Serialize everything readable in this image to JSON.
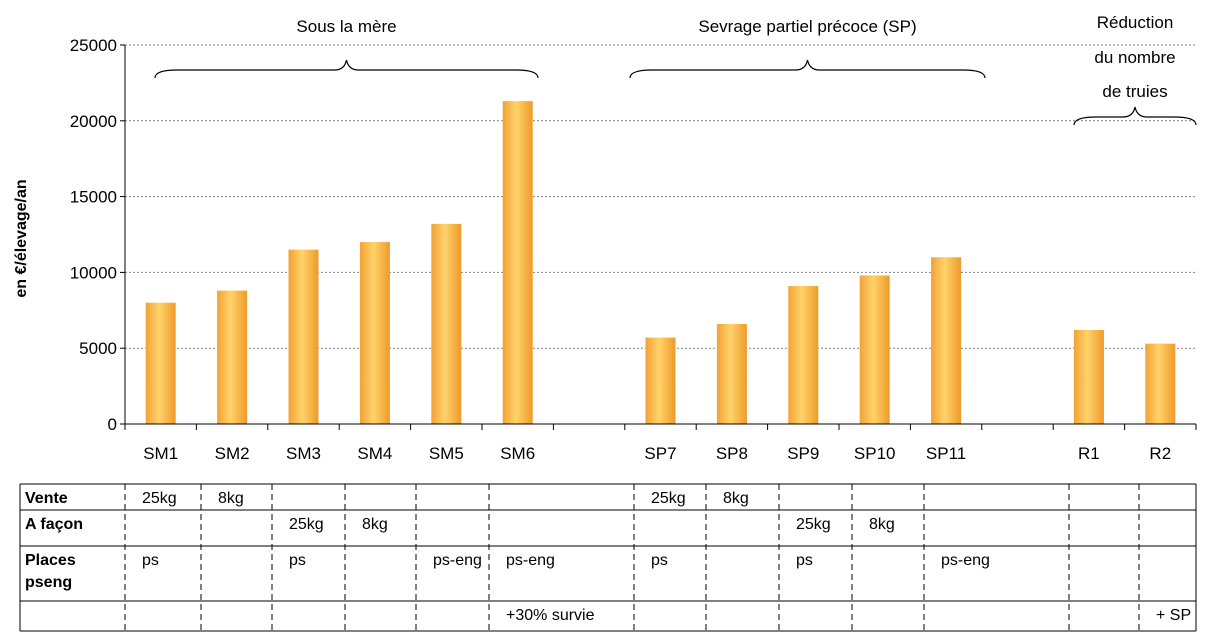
{
  "chart_data": {
    "type": "bar",
    "ylabel": "en €/élevage/an",
    "ylim": [
      0,
      25000
    ],
    "yticks": [
      0,
      5000,
      10000,
      15000,
      20000,
      25000
    ],
    "grid": true,
    "slots": [
      "SM1",
      "SM2",
      "SM3",
      "SM4",
      "SM5",
      "SM6",
      "",
      "SP7",
      "SP8",
      "SP9",
      "SP10",
      "SP11",
      "",
      "R1",
      "R2"
    ],
    "categories": [
      "SM1",
      "SM2",
      "SM3",
      "SM4",
      "SM5",
      "SM6",
      "SP7",
      "SP8",
      "SP9",
      "SP10",
      "SP11",
      "R1",
      "R2"
    ],
    "values": [
      8000,
      8800,
      11500,
      12000,
      13200,
      21300,
      5700,
      6600,
      9100,
      9800,
      11000,
      6200,
      5300
    ],
    "groups": [
      {
        "label_lines": [
          "Sous la mère"
        ],
        "from": "SM1",
        "to": "SM6"
      },
      {
        "label_lines": [
          "Sevrage partiel précoce (SP)"
        ],
        "from": "SP7",
        "to": "SP11"
      },
      {
        "label_lines": [
          "Réduction",
          "du nombre",
          "de truies"
        ],
        "from": "R1",
        "to": "R2"
      }
    ],
    "bar_color": "#f0a830"
  },
  "table": {
    "rows": [
      {
        "header": [
          "Vente"
        ],
        "cells": [
          "25kg",
          "8kg",
          "",
          "",
          "",
          "",
          "25kg",
          "8kg",
          "",
          "",
          "",
          "",
          ""
        ]
      },
      {
        "header": [
          "A façon"
        ],
        "cells": [
          "",
          "",
          "25kg",
          "8kg",
          "",
          "",
          "",
          "",
          "25kg",
          "8kg",
          "",
          "",
          ""
        ]
      },
      {
        "header": [
          "Places",
          "pseng"
        ],
        "cells": [
          "ps",
          "",
          "ps",
          "",
          "ps-eng",
          "ps-eng",
          "ps",
          "",
          "ps",
          "",
          "ps-eng",
          "",
          ""
        ]
      },
      {
        "header": [
          ""
        ],
        "cells": [
          "",
          "",
          "",
          "",
          "",
          "+30% survie",
          "",
          "",
          "",
          "",
          "",
          "",
          "+ SP"
        ]
      }
    ]
  }
}
